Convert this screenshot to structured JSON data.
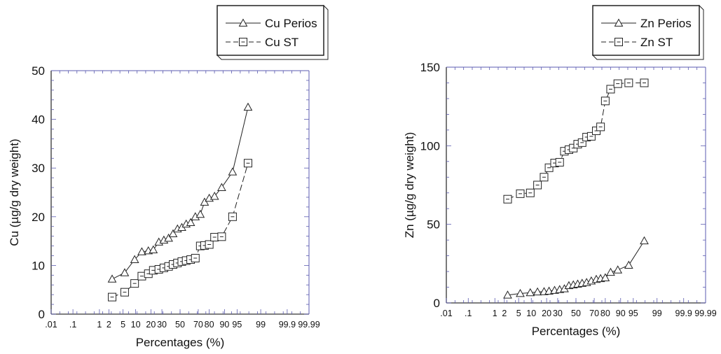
{
  "chart_data": [
    {
      "type": "scatter",
      "title": "",
      "xlabel": "Percentages (%)",
      "ylabel": "Cu (µg/g dry weight)",
      "xscale": "probability",
      "ylim": [
        0,
        50
      ],
      "yticks": [
        0,
        10,
        20,
        30,
        40,
        50
      ],
      "xtick_labels": [
        ".01",
        ".1",
        "1",
        "2",
        "5",
        "10",
        "20",
        "30",
        "50",
        "70",
        "80",
        "90",
        "95",
        "99",
        "99.9",
        "99.99"
      ],
      "legend_position": "top-right",
      "grid": false,
      "series": [
        {
          "name": "Cu Perios",
          "marker": "triangle",
          "line": "solid",
          "x": [
            2.5,
            5.5,
            9.5,
            13.5,
            18,
            22,
            27,
            32,
            37,
            42,
            47,
            52,
            57,
            62,
            67,
            72,
            76,
            80,
            84,
            88.5,
            93.5,
            97.5
          ],
          "y": [
            7.2,
            8.5,
            11.2,
            12.8,
            13.0,
            13.2,
            14.8,
            15.2,
            15.6,
            16.5,
            17.5,
            17.8,
            18.5,
            18.8,
            20.0,
            20.5,
            23.0,
            23.8,
            24.2,
            26.0,
            29.2,
            42.5
          ]
        },
        {
          "name": "Cu ST",
          "marker": "square",
          "line": "dashed",
          "x": [
            2.5,
            5.5,
            9.5,
            13.5,
            18,
            22,
            27,
            32,
            37,
            42,
            47,
            52,
            57,
            62,
            67,
            72,
            76,
            80,
            84,
            88.5,
            93.5,
            97.5
          ],
          "y": [
            3.5,
            4.5,
            6.3,
            7.8,
            8.3,
            9.0,
            9.2,
            9.5,
            9.8,
            10.2,
            10.5,
            10.8,
            11.0,
            11.2,
            11.5,
            14.0,
            14.1,
            14.3,
            15.8,
            15.9,
            20.0,
            31.0
          ]
        }
      ]
    },
    {
      "type": "scatter",
      "title": "",
      "xlabel": "Percentages (%)",
      "ylabel": "Zn (µg/g dry weight)",
      "xscale": "probability",
      "ylim": [
        0,
        150
      ],
      "yticks": [
        0,
        50,
        100,
        150
      ],
      "xtick_labels": [
        ".01",
        ".1",
        "1",
        "2",
        "5",
        "10",
        "20",
        "30",
        "50",
        "70",
        "80",
        "90",
        "95",
        "99",
        "99.9",
        "99.99"
      ],
      "legend_position": "top-right",
      "grid": false,
      "series": [
        {
          "name": "Zn Perios",
          "marker": "triangle",
          "line": "solid",
          "x": [
            2.5,
            5.5,
            9.5,
            13.5,
            18,
            22,
            27,
            32,
            37,
            42,
            47,
            52,
            57,
            62,
            67,
            72,
            76,
            80,
            84,
            88.5,
            93.5,
            97.5
          ],
          "y": [
            5,
            6,
            6.5,
            7,
            7.2,
            7.5,
            8,
            8.5,
            9,
            11,
            11.5,
            12,
            12.5,
            13,
            14,
            15,
            15.5,
            16,
            19.5,
            21,
            24,
            39.5
          ]
        },
        {
          "name": "Zn ST",
          "marker": "square",
          "line": "dashed",
          "x": [
            2.5,
            5.5,
            9.5,
            13.5,
            18,
            22,
            27,
            32,
            37,
            42,
            47,
            52,
            57,
            62,
            67,
            72,
            76,
            80,
            84,
            88.5,
            93.5,
            97.5
          ],
          "y": [
            66,
            69.5,
            70,
            75,
            80,
            86,
            89,
            89.5,
            96.5,
            97.5,
            98.5,
            101,
            102,
            105.5,
            106,
            109.5,
            112,
            128.5,
            136,
            139.5,
            140,
            140
          ]
        }
      ]
    }
  ]
}
